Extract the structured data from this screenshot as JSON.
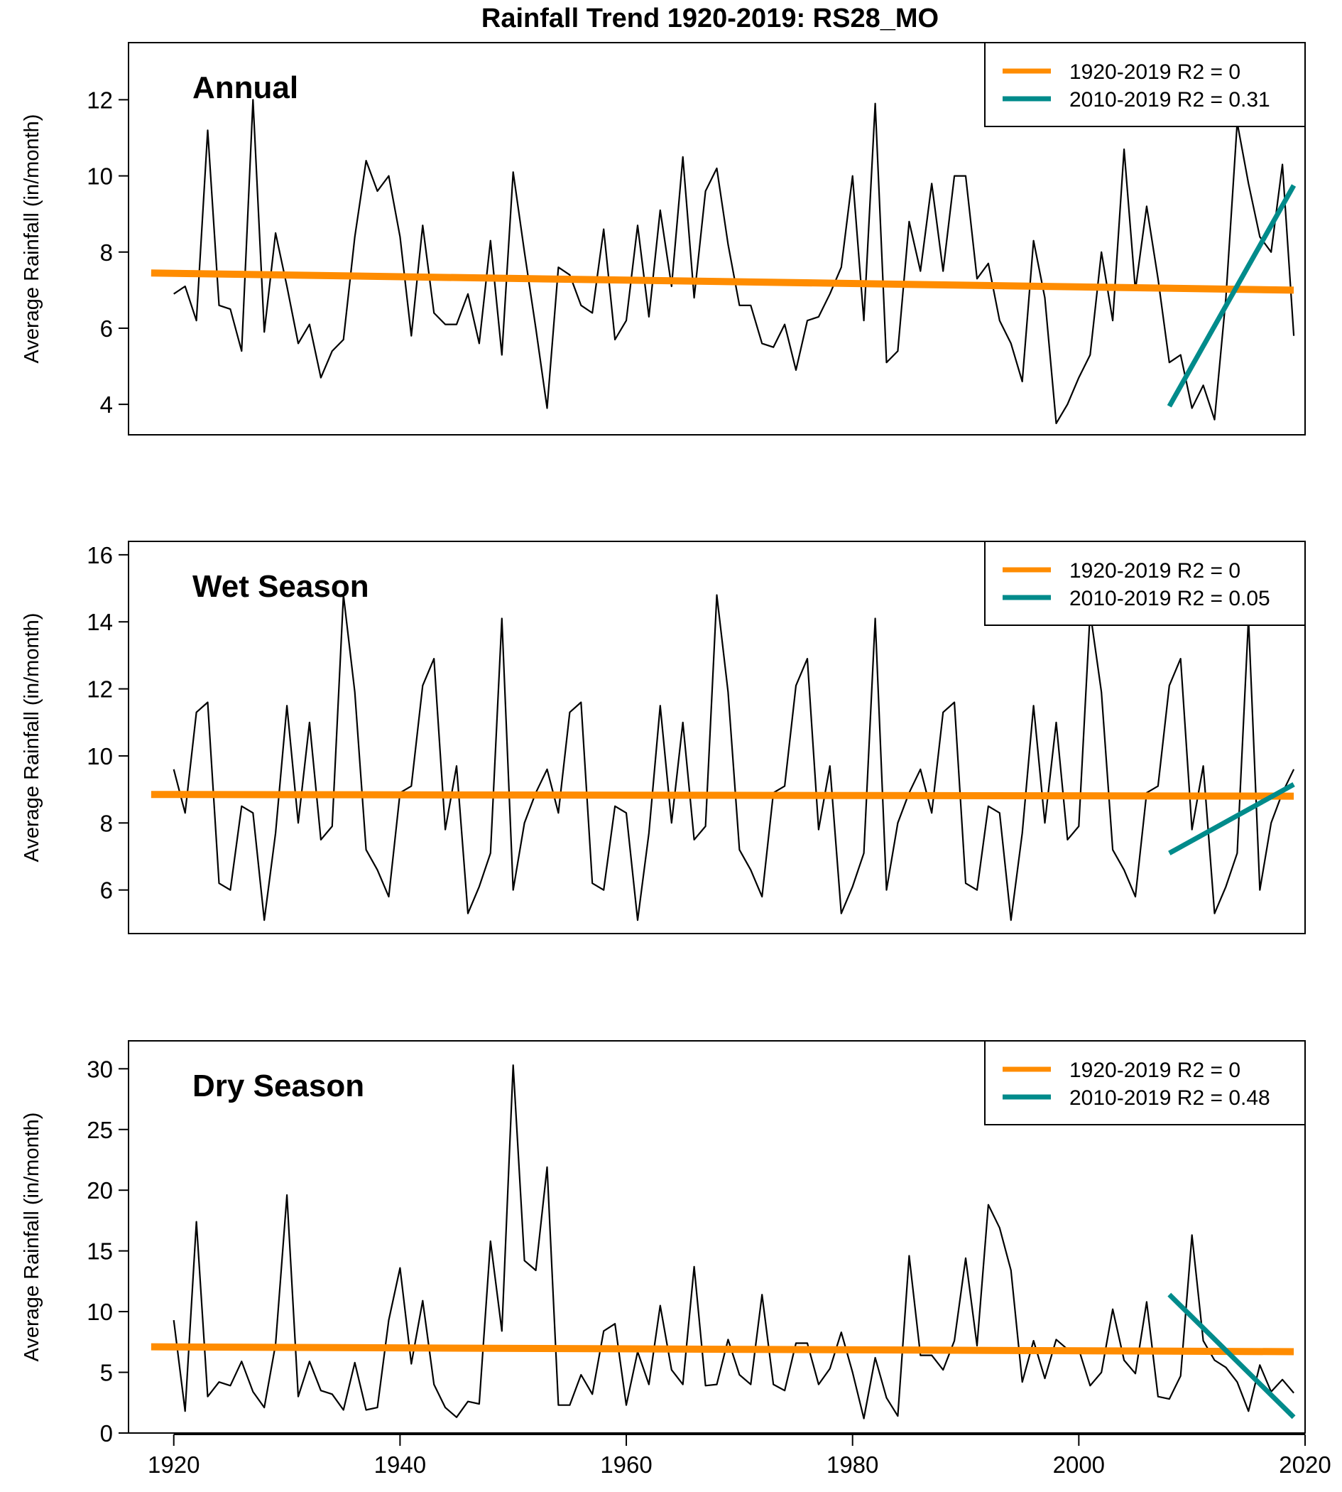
{
  "chart_data": {
    "type": "line",
    "title": "Rainfall Trend 1920-2019: RS28_MO",
    "xlabel": "",
    "ylabel": "Average Rainfall (in/month)",
    "xlim": [
      1916,
      2020
    ],
    "x_ticks": [
      "1920",
      "1940",
      "1960",
      "1980",
      "2000",
      "2020"
    ],
    "grid": false,
    "legend_position": "top-right",
    "colors": {
      "series": "#000000",
      "trend_full": "#ff8c00",
      "trend_recent": "#008b8b"
    },
    "x": [
      1920,
      1921,
      1922,
      1923,
      1924,
      1925,
      1926,
      1927,
      1928,
      1929,
      1930,
      1931,
      1932,
      1933,
      1934,
      1935,
      1936,
      1937,
      1938,
      1939,
      1940,
      1941,
      1942,
      1943,
      1944,
      1945,
      1946,
      1947,
      1948,
      1949,
      1950,
      1951,
      1952,
      1953,
      1954,
      1955,
      1956,
      1957,
      1958,
      1959,
      1960,
      1961,
      1962,
      1963,
      1964,
      1965,
      1966,
      1967,
      1968,
      1969,
      1970,
      1971,
      1972,
      1973,
      1974,
      1975,
      1976,
      1977,
      1978,
      1979,
      1980,
      1981,
      1982,
      1983,
      1984,
      1985,
      1986,
      1987,
      1988,
      1989,
      1990,
      1991,
      1992,
      1993,
      1994,
      1995,
      1996,
      1997,
      1998,
      1999,
      2000,
      2001,
      2002,
      2003,
      2004,
      2005,
      2006,
      2007,
      2008,
      2009,
      2010,
      2011,
      2012,
      2013,
      2014,
      2015,
      2016,
      2017,
      2018,
      2019
    ],
    "panels": [
      {
        "label": "Annual",
        "ylim": [
          3.2,
          13.5
        ],
        "y_ticks": [
          "4",
          "6",
          "8",
          "10",
          "12"
        ],
        "values": [
          6.9,
          7.1,
          6.2,
          11.2,
          6.6,
          6.5,
          5.4,
          12.0,
          5.9,
          8.5,
          7.1,
          5.6,
          6.1,
          4.7,
          5.4,
          5.7,
          8.4,
          10.4,
          9.6,
          10.0,
          8.4,
          5.8,
          8.7,
          6.4,
          6.1,
          6.1,
          6.9,
          5.6,
          8.3,
          5.3,
          10.1,
          8.0,
          6.0,
          3.9,
          7.6,
          7.4,
          6.6,
          6.4,
          8.6,
          5.7,
          6.2,
          8.7,
          6.3,
          9.1,
          7.1,
          10.5,
          6.8,
          9.6,
          10.2,
          8.2,
          6.6,
          6.6,
          5.6,
          5.5,
          6.1,
          4.9,
          6.2,
          6.3,
          6.9,
          7.6,
          10.0,
          6.2,
          11.9,
          5.1,
          5.4,
          8.8,
          7.5,
          9.8,
          7.5,
          10.0,
          10.0,
          7.3,
          7.7,
          6.2,
          5.6,
          4.6,
          8.3,
          6.8,
          3.5,
          4.0,
          4.7,
          5.3,
          8.0,
          6.2,
          10.7,
          7.0,
          9.2,
          7.3,
          5.1,
          5.3,
          3.9,
          4.5,
          3.6,
          6.8,
          11.4,
          9.8,
          8.4,
          8.0,
          10.3,
          5.8
        ],
        "legend": [
          {
            "label": "1920-2019  R2 = 0",
            "color": "#ff8c00"
          },
          {
            "label": "2010-2019  R2 = 0.31",
            "color": "#008b8b"
          }
        ],
        "trend_full": {
          "x": [
            1918,
            2019
          ],
          "y": [
            7.45,
            7.0
          ]
        },
        "trend_recent": {
          "x": [
            2008,
            2019
          ],
          "y": [
            3.95,
            9.75
          ]
        }
      },
      {
        "label": "Wet Season",
        "ylim": [
          4.7,
          16.4
        ],
        "y_ticks": [
          "6",
          "8",
          "10",
          "12",
          "14",
          "16"
        ],
        "values": [
          9.6,
          8.3,
          11.3,
          11.6,
          6.2,
          6.0,
          8.5,
          8.3,
          5.1,
          7.7,
          11.5,
          8.0,
          11.0,
          7.5,
          7.9,
          14.8,
          11.9,
          7.2,
          6.6,
          5.8,
          8.9,
          9.1,
          12.1,
          12.9,
          7.8,
          9.7,
          5.3,
          6.1,
          7.1,
          14.1,
          6.0,
          8.0,
          8.9,
          9.6,
          8.3,
          11.3,
          11.6,
          6.2,
          6.0,
          8.5,
          8.3,
          5.1,
          7.7,
          11.5,
          8.0,
          11.0,
          7.5,
          7.9,
          14.8,
          11.9,
          7.2,
          6.6,
          5.8,
          8.9,
          9.1,
          12.1,
          12.9,
          7.8,
          9.7,
          5.3,
          6.1,
          7.1,
          14.1,
          6.0,
          8.0,
          8.9,
          9.6,
          8.3,
          11.3,
          11.6,
          6.2,
          6.0,
          8.5,
          8.3,
          5.1,
          7.7,
          11.5,
          8.0,
          11.0,
          7.5,
          7.9,
          14.3,
          11.9,
          7.2,
          6.6,
          5.8,
          8.9,
          9.1,
          12.1,
          12.9,
          7.8,
          9.7,
          5.3,
          6.1,
          7.1,
          14.1,
          6.0,
          8.0,
          8.9,
          9.6
        ],
        "legend": [
          {
            "label": "1920-2019  R2 = 0",
            "color": "#ff8c00"
          },
          {
            "label": "2010-2019  R2 = 0.05",
            "color": "#008b8b"
          }
        ],
        "trend_full": {
          "x": [
            1918,
            2019
          ],
          "y": [
            8.85,
            8.8
          ]
        },
        "trend_recent": {
          "x": [
            2008,
            2019
          ],
          "y": [
            7.1,
            9.15
          ]
        }
      },
      {
        "label": "Dry Season",
        "ylim": [
          0,
          32.3
        ],
        "y_ticks": [
          "0",
          "5",
          "10",
          "15",
          "20",
          "25",
          "30"
        ],
        "values": [
          9.3,
          1.8,
          17.4,
          3.0,
          4.2,
          3.9,
          5.9,
          3.4,
          2.1,
          7.3,
          19.6,
          3.0,
          5.9,
          3.5,
          3.2,
          1.9,
          5.8,
          1.9,
          2.1,
          9.3,
          13.6,
          5.7,
          10.9,
          4.0,
          2.1,
          1.3,
          2.6,
          2.4,
          15.8,
          8.4,
          30.3,
          14.2,
          13.4,
          21.9,
          2.3,
          2.3,
          4.8,
          3.2,
          8.4,
          9.0,
          2.3,
          6.7,
          4.0,
          10.5,
          5.2,
          4.0,
          13.7,
          3.9,
          4.0,
          7.7,
          4.8,
          4.0,
          11.4,
          4.0,
          3.5,
          7.4,
          7.4,
          4.0,
          5.3,
          8.3,
          5.0,
          1.2,
          6.2,
          2.9,
          1.4,
          14.6,
          6.4,
          6.4,
          5.2,
          7.6,
          14.4,
          7.2,
          18.8,
          16.9,
          13.4,
          4.2,
          7.6,
          4.5,
          7.7,
          6.9,
          6.9,
          3.9,
          5.0,
          10.2,
          6.0,
          4.9,
          10.8,
          3.0,
          2.8,
          4.7,
          16.3,
          7.6,
          6.0,
          5.4,
          4.2,
          1.8,
          5.6,
          3.4,
          4.4,
          3.3
        ],
        "legend": [
          {
            "label": "1920-2019  R2 = 0",
            "color": "#ff8c00"
          },
          {
            "label": "2010-2019  R2 = 0.48",
            "color": "#008b8b"
          }
        ],
        "trend_full": {
          "x": [
            1918,
            2019
          ],
          "y": [
            7.1,
            6.7
          ]
        },
        "trend_recent": {
          "x": [
            2008,
            2019
          ],
          "y": [
            11.4,
            1.3
          ]
        }
      }
    ]
  }
}
